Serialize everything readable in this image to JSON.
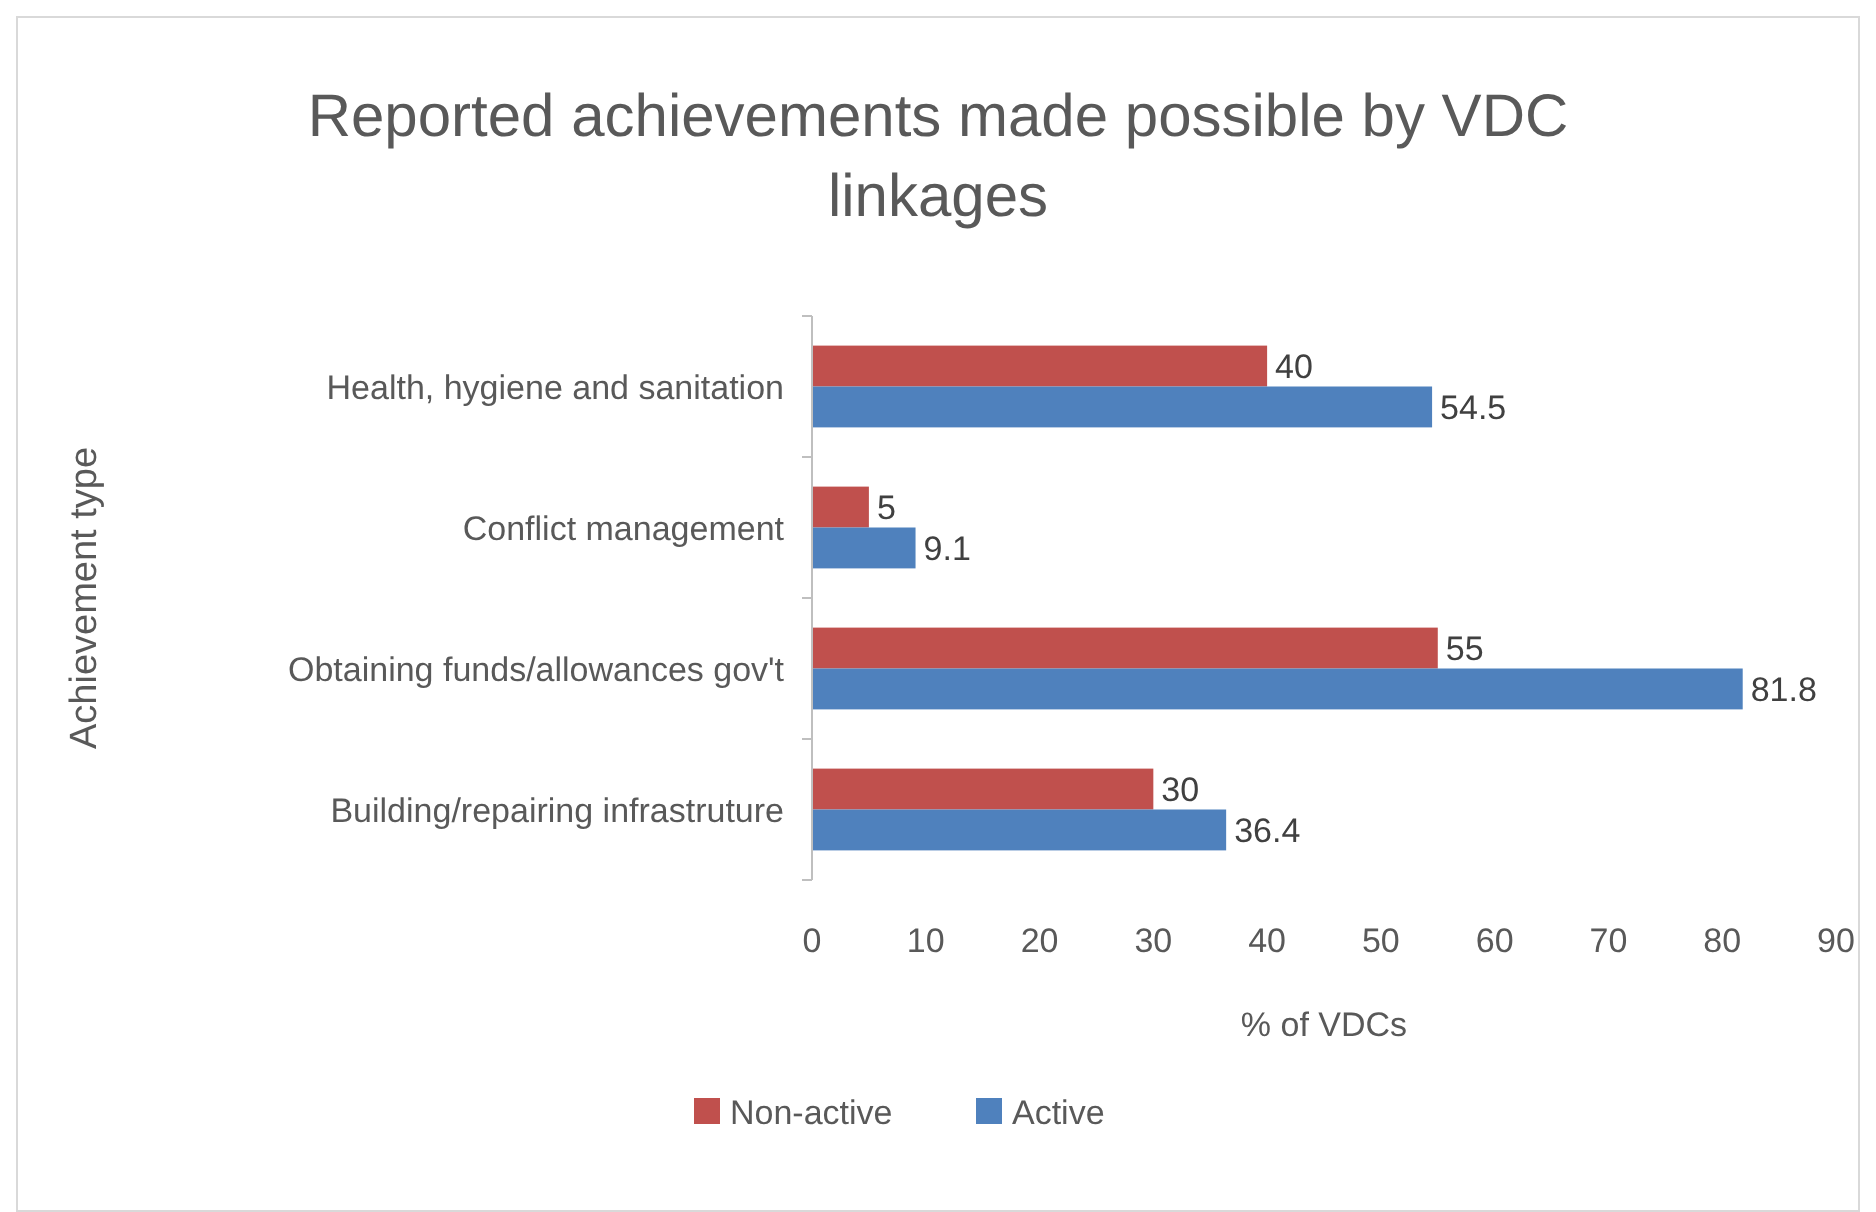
{
  "chart_data": {
    "type": "bar",
    "orientation": "horizontal",
    "title": "Reported achievements made possible by VDC linkages",
    "xlabel": "% of VDCs",
    "ylabel": "Achievement type",
    "categories": [
      "Health, hygiene and sanitation",
      "Conflict management",
      "Obtaining funds/allowances gov't",
      "Building/repairing infrastruture"
    ],
    "series": [
      {
        "name": "Non-active",
        "color": "#c0504d",
        "values": [
          40,
          5,
          55,
          30
        ]
      },
      {
        "name": "Active",
        "color": "#4f81bd",
        "values": [
          54.5,
          9.1,
          81.8,
          36.4
        ]
      }
    ],
    "xlim": [
      0,
      90
    ],
    "xticks": [
      0,
      10,
      20,
      30,
      40,
      50,
      60,
      70,
      80,
      90
    ],
    "data_labels": true,
    "legend": "bottom"
  }
}
